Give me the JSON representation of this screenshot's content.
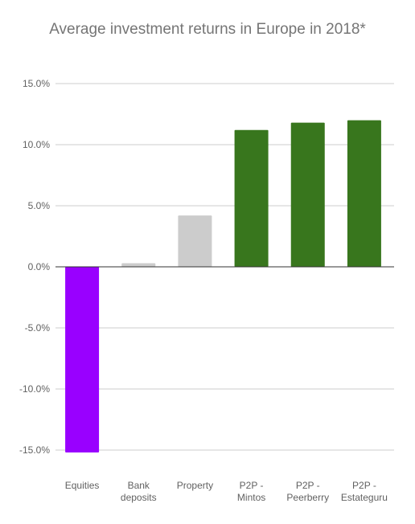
{
  "chart_data": {
    "type": "bar",
    "title": "Average investment returns in Europe in 2018*",
    "categories": [
      [
        "Equities"
      ],
      [
        "Bank",
        "deposits"
      ],
      [
        "Property"
      ],
      [
        "P2P -",
        "Mintos"
      ],
      [
        "P2P -",
        "Peerberry"
      ],
      [
        "P2P -",
        "Estateguru"
      ]
    ],
    "values": [
      -15.2,
      0.3,
      4.2,
      11.2,
      11.8,
      12.0
    ],
    "colors": [
      "#9900ff",
      "#cccccc",
      "#cccccc",
      "#38761d",
      "#38761d",
      "#38761d"
    ],
    "ylim": [
      -15,
      15
    ],
    "yticks": [
      15,
      10,
      5,
      0,
      -5,
      -10,
      -15
    ],
    "ytick_labels": [
      "15.0%",
      "10.0%",
      "5.0%",
      "0.0%",
      "-5.0%",
      "-10.0%",
      "-15.0%"
    ],
    "grid": true,
    "legend": "none"
  }
}
